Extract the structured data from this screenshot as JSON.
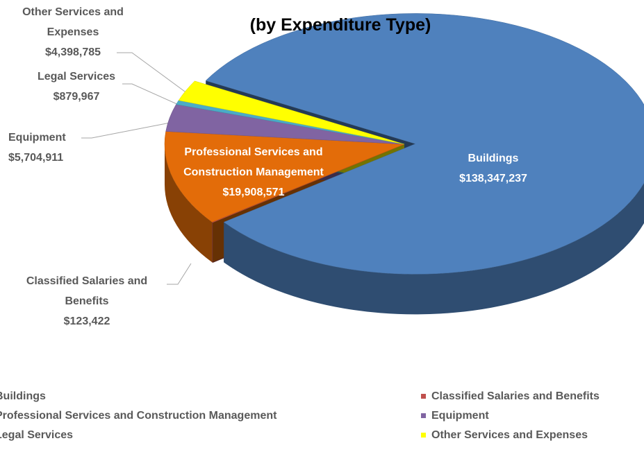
{
  "chart_data": {
    "type": "pie3d",
    "title": "(by Expenditure Type)",
    "categories": [
      "Buildings",
      "Classified Salaries and Benefits",
      "Professional Services and Construction Management",
      "Equipment",
      "Legal Services",
      "Other Services and Expenses"
    ],
    "values": [
      138347237,
      123422,
      19908571,
      5704911,
      879967,
      4398785
    ],
    "value_labels": [
      "$138,347,237",
      "$123,422",
      "$19,908,571",
      "$5,704,911",
      "$879,967",
      "$4,398,785"
    ],
    "colors": [
      "#4f81bd",
      "#c0504d",
      "#e36c09",
      "#8064a2",
      "#4bacc6",
      "#ffff00"
    ],
    "legend": "bottom"
  }
}
